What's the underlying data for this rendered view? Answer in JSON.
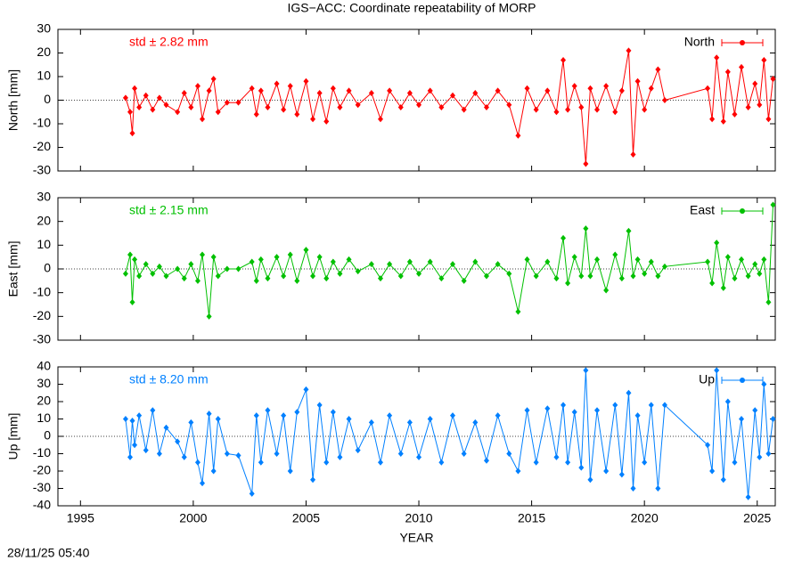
{
  "title": "IGS−ACC: Coordinate repeatability of MORP",
  "footer": "28/11/25 05:40",
  "chart_data": [
    {
      "type": "line",
      "ylabel": "North [mm]",
      "annotation": "std ± 2.82 mm",
      "legend": "top right",
      "xlim": [
        1994,
        2025.8
      ],
      "xticks": [
        1995,
        2000,
        2005,
        2010,
        2015,
        2020,
        2025
      ],
      "ylim": [
        -30,
        30
      ],
      "yticks": [
        -30,
        -20,
        -10,
        0,
        10,
        20,
        30
      ],
      "series": [
        {
          "name": "North",
          "color": "#ff0000",
          "x": [
            1997.0,
            1997.2,
            1997.3,
            1997.4,
            1997.6,
            1997.9,
            1998.2,
            1998.5,
            1998.8,
            1999.3,
            1999.6,
            1999.9,
            2000.2,
            2000.4,
            2000.7,
            2000.9,
            2001.1,
            2001.5,
            2002.0,
            2002.6,
            2002.8,
            2003.0,
            2003.3,
            2003.7,
            2004.0,
            2004.3,
            2004.6,
            2005.0,
            2005.3,
            2005.6,
            2005.9,
            2006.2,
            2006.5,
            2006.9,
            2007.3,
            2007.9,
            2008.3,
            2008.7,
            2009.2,
            2009.6,
            2010.0,
            2010.5,
            2011.0,
            2011.5,
            2012.0,
            2012.5,
            2013.0,
            2013.5,
            2014.0,
            2014.4,
            2014.8,
            2015.2,
            2015.7,
            2016.1,
            2016.4,
            2016.6,
            2016.9,
            2017.2,
            2017.4,
            2017.6,
            2017.9,
            2018.3,
            2018.7,
            2019.0,
            2019.3,
            2019.5,
            2019.7,
            2020.0,
            2020.3,
            2020.6,
            2020.9,
            2022.8,
            2023.0,
            2023.2,
            2023.5,
            2023.7,
            2024.0,
            2024.3,
            2024.6,
            2024.9,
            2025.1,
            2025.3,
            2025.5,
            2025.7
          ],
          "values": [
            1,
            -5,
            -14,
            5,
            -3,
            2,
            -4,
            1,
            -2,
            -5,
            3,
            -3,
            6,
            -8,
            4,
            9,
            -5,
            -1,
            -1,
            5,
            -6,
            4,
            -3,
            7,
            -4,
            6,
            -6,
            8,
            -8,
            3,
            -9,
            5,
            -3,
            4,
            -2,
            3,
            -8,
            4,
            -3,
            3,
            -2,
            4,
            -3,
            2,
            -4,
            3,
            -3,
            4,
            -2,
            -15,
            5,
            -4,
            4,
            -5,
            17,
            -4,
            6,
            -3,
            -27,
            5,
            -4,
            6,
            -5,
            4,
            21,
            -23,
            8,
            -4,
            5,
            13,
            0,
            5,
            -8,
            18,
            -9,
            12,
            -6,
            14,
            -3,
            7,
            -2,
            17,
            -8,
            9
          ]
        }
      ]
    },
    {
      "type": "line",
      "ylabel": "East [mm]",
      "annotation": "std ± 2.15 mm",
      "legend": "top right",
      "xlim": [
        1994,
        2025.8
      ],
      "xticks": [
        1995,
        2000,
        2005,
        2010,
        2015,
        2020,
        2025
      ],
      "ylim": [
        -30,
        30
      ],
      "yticks": [
        -30,
        -20,
        -10,
        0,
        10,
        20,
        30
      ],
      "series": [
        {
          "name": "East",
          "color": "#00c000",
          "x": [
            1997.0,
            1997.2,
            1997.3,
            1997.4,
            1997.6,
            1997.9,
            1998.2,
            1998.5,
            1998.8,
            1999.3,
            1999.6,
            1999.9,
            2000.2,
            2000.4,
            2000.7,
            2000.9,
            2001.1,
            2001.5,
            2002.0,
            2002.6,
            2002.8,
            2003.0,
            2003.3,
            2003.7,
            2004.0,
            2004.3,
            2004.6,
            2005.0,
            2005.3,
            2005.6,
            2005.9,
            2006.2,
            2006.5,
            2006.9,
            2007.3,
            2007.9,
            2008.3,
            2008.7,
            2009.2,
            2009.6,
            2010.0,
            2010.5,
            2011.0,
            2011.5,
            2012.0,
            2012.5,
            2013.0,
            2013.5,
            2014.0,
            2014.4,
            2014.8,
            2015.2,
            2015.7,
            2016.1,
            2016.4,
            2016.6,
            2016.9,
            2017.2,
            2017.4,
            2017.6,
            2017.9,
            2018.3,
            2018.7,
            2019.0,
            2019.3,
            2019.5,
            2019.7,
            2020.0,
            2020.3,
            2020.6,
            2020.9,
            2022.8,
            2023.0,
            2023.2,
            2023.5,
            2023.7,
            2024.0,
            2024.3,
            2024.6,
            2024.9,
            2025.1,
            2025.3,
            2025.5,
            2025.7
          ],
          "values": [
            -2,
            6,
            -14,
            4,
            -3,
            2,
            -2,
            1,
            -3,
            0,
            -4,
            2,
            -5,
            6,
            -20,
            5,
            -3,
            0,
            0,
            3,
            -5,
            4,
            -4,
            5,
            -3,
            6,
            -5,
            8,
            -3,
            5,
            -4,
            3,
            -2,
            4,
            -1,
            2,
            -4,
            2,
            -3,
            3,
            -2,
            3,
            -4,
            2,
            -5,
            3,
            -3,
            2,
            -2,
            -18,
            4,
            -3,
            3,
            -4,
            13,
            -6,
            5,
            -3,
            17,
            -3,
            4,
            -9,
            6,
            -4,
            16,
            -3,
            4,
            -2,
            3,
            -3,
            1,
            3,
            -6,
            11,
            -8,
            5,
            -4,
            4,
            -3,
            2,
            -2,
            4,
            -14,
            27
          ]
        }
      ]
    },
    {
      "type": "line",
      "ylabel": "Up [mm]",
      "annotation": "std ± 8.20 mm",
      "legend": "top right",
      "xlabel": "YEAR",
      "xlim": [
        1994,
        2025.8
      ],
      "xticks": [
        1995,
        2000,
        2005,
        2010,
        2015,
        2020,
        2025
      ],
      "ylim": [
        -40,
        40
      ],
      "yticks": [
        -40,
        -30,
        -20,
        -10,
        0,
        10,
        20,
        30,
        40
      ],
      "series": [
        {
          "name": "Up",
          "color": "#0080ff",
          "x": [
            1997.0,
            1997.2,
            1997.3,
            1997.4,
            1997.6,
            1997.9,
            1998.2,
            1998.5,
            1998.8,
            1999.3,
            1999.6,
            1999.9,
            2000.2,
            2000.4,
            2000.7,
            2000.9,
            2001.1,
            2001.5,
            2002.0,
            2002.6,
            2002.8,
            2003.0,
            2003.3,
            2003.7,
            2004.0,
            2004.3,
            2004.6,
            2005.0,
            2005.3,
            2005.6,
            2005.9,
            2006.2,
            2006.5,
            2006.9,
            2007.3,
            2007.9,
            2008.3,
            2008.7,
            2009.2,
            2009.6,
            2010.0,
            2010.5,
            2011.0,
            2011.5,
            2012.0,
            2012.5,
            2013.0,
            2013.5,
            2014.0,
            2014.4,
            2014.8,
            2015.2,
            2015.7,
            2016.1,
            2016.4,
            2016.6,
            2016.9,
            2017.2,
            2017.4,
            2017.6,
            2017.9,
            2018.3,
            2018.7,
            2019.0,
            2019.3,
            2019.5,
            2019.7,
            2020.0,
            2020.3,
            2020.6,
            2020.9,
            2022.8,
            2023.0,
            2023.2,
            2023.5,
            2023.7,
            2024.0,
            2024.3,
            2024.6,
            2024.9,
            2025.1,
            2025.3,
            2025.5,
            2025.7
          ],
          "values": [
            10,
            -12,
            9,
            -5,
            12,
            -8,
            15,
            -10,
            5,
            -3,
            -12,
            8,
            -15,
            -27,
            13,
            -20,
            10,
            -10,
            -11,
            -33,
            12,
            -15,
            15,
            -10,
            12,
            -20,
            14,
            27,
            -25,
            18,
            -15,
            14,
            -12,
            10,
            -8,
            8,
            -15,
            12,
            -10,
            8,
            -12,
            10,
            -15,
            12,
            -10,
            8,
            -14,
            12,
            -10,
            -20,
            15,
            -15,
            16,
            -12,
            18,
            -15,
            14,
            -18,
            38,
            -25,
            15,
            -20,
            18,
            -22,
            25,
            -30,
            12,
            -15,
            18,
            -30,
            18,
            -5,
            -20,
            38,
            -25,
            20,
            -15,
            10,
            -35,
            15,
            -12,
            30,
            -10,
            10
          ]
        }
      ]
    }
  ]
}
